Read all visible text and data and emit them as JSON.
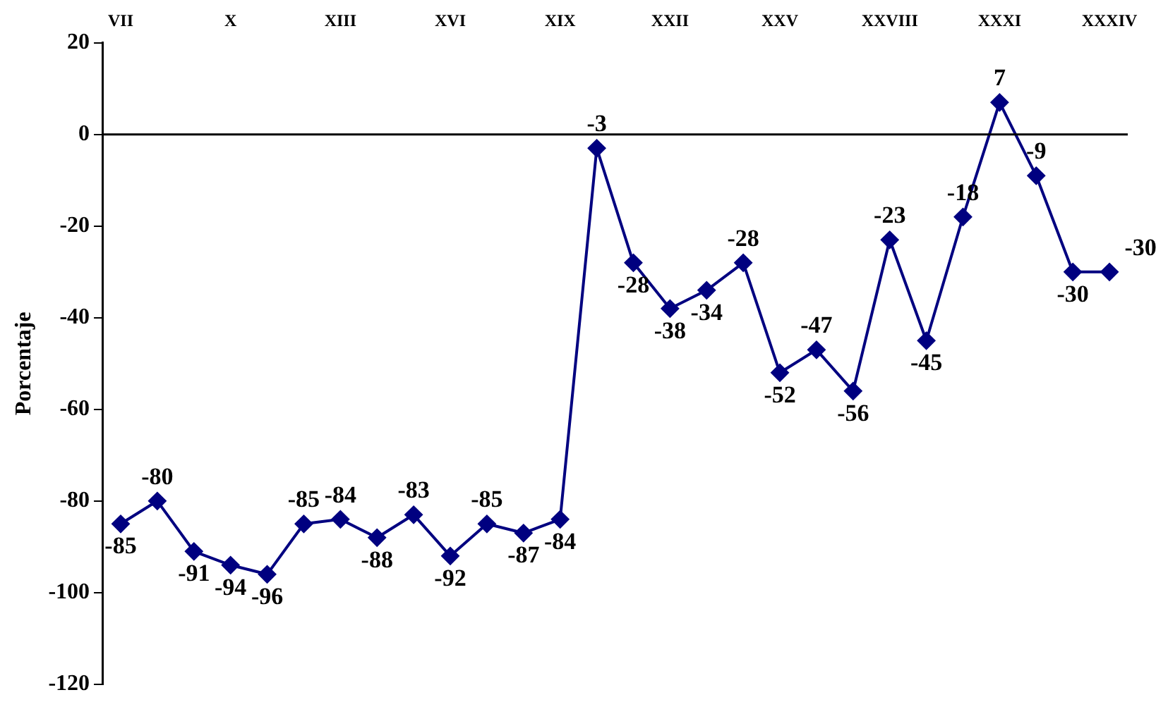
{
  "chart_data": {
    "type": "line",
    "ylabel": "Porcentaje",
    "categories": [
      "VII",
      null,
      null,
      "X",
      null,
      null,
      "XIII",
      null,
      null,
      "XVI",
      null,
      null,
      "XIX",
      null,
      null,
      "XXII",
      null,
      null,
      "XXV",
      null,
      null,
      "XXVIII",
      null,
      null,
      "XXXI",
      null,
      null,
      "XXXIV"
    ],
    "series": [
      {
        "color": "#000080",
        "values": [
          -85,
          -80,
          -91,
          -94,
          -96,
          -85,
          -84,
          -88,
          -83,
          -92,
          -85,
          -87,
          -84,
          -3,
          -28,
          -38,
          -34,
          -28,
          -52,
          -47,
          -56,
          -23,
          -45,
          -18,
          7,
          -9,
          -30,
          -30
        ]
      }
    ],
    "ylim": [
      -120,
      20
    ],
    "yticks": [
      -120,
      -100,
      -80,
      -60,
      -40,
      -20,
      0,
      20
    ],
    "ref_lines": [
      {
        "axis": "y",
        "value": 0,
        "color": "#000000"
      }
    ],
    "data_labels": true,
    "marker": "diamond",
    "grid": false,
    "legend": false
  }
}
